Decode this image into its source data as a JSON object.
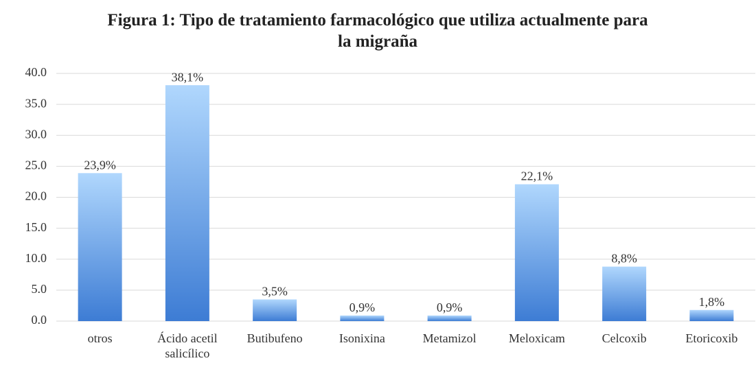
{
  "chart_data": {
    "type": "bar",
    "title": "Figura 1: Tipo de tratamiento farmacológico que utiliza actualmente para la migraña",
    "categories": [
      "otros",
      "Ácido acetil\nsalicílico",
      "Butibufeno",
      "Isonixina",
      "Metamizol",
      "Meloxicam",
      "Celcoxib",
      "Etoricoxib"
    ],
    "values": [
      23.9,
      38.1,
      3.5,
      0.9,
      0.9,
      22.1,
      8.8,
      1.8
    ],
    "value_labels": [
      "23,9%",
      "38,1%",
      "3,5%",
      "0,9%",
      "0,9%",
      "22,1%",
      "8,8%",
      "1,8%"
    ],
    "gradient": [
      "#b0d7fd",
      "#3d7cd4"
    ],
    "ylim": [
      0,
      40
    ],
    "yticks": [
      {
        "value": 0,
        "label": "0.0"
      },
      {
        "value": 5,
        "label": "5.0"
      },
      {
        "value": 10,
        "label": "10.0"
      },
      {
        "value": 15,
        "label": "15.0"
      },
      {
        "value": 20,
        "label": "20.0"
      },
      {
        "value": 25,
        "label": "25.0"
      },
      {
        "value": 30,
        "label": "30.0"
      },
      {
        "value": 35,
        "label": "35.0"
      },
      {
        "value": 40,
        "label": "40.0"
      }
    ],
    "grid": true
  }
}
